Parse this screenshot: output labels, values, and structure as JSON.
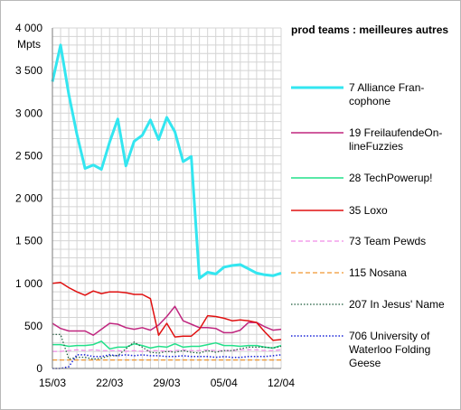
{
  "chart_data": {
    "type": "line",
    "title": "prod teams : meilleures autres",
    "ylabel": "Mpts",
    "ylim": [
      0,
      4000
    ],
    "ystep": 100,
    "y_ticks": [
      {
        "value": 0,
        "label": "0"
      },
      {
        "value": 500,
        "label": "500"
      },
      {
        "value": 1000,
        "label": "1 000"
      },
      {
        "value": 1500,
        "label": "1 500"
      },
      {
        "value": 2000,
        "label": "2 000"
      },
      {
        "value": 2500,
        "label": "2 500"
      },
      {
        "value": 3000,
        "label": "3 000"
      },
      {
        "value": 3500,
        "label": "3 500"
      },
      {
        "value": 4000,
        "label": "4 000"
      }
    ],
    "x": [
      "15/03",
      "16/03",
      "17/03",
      "18/03",
      "19/03",
      "20/03",
      "21/03",
      "22/03",
      "23/03",
      "24/03",
      "25/03",
      "26/03",
      "27/03",
      "28/03",
      "29/03",
      "30/03",
      "31/03",
      "01/04",
      "02/04",
      "03/04",
      "04/04",
      "05/04",
      "06/04",
      "07/04",
      "08/04",
      "09/04",
      "10/04",
      "11/04",
      "12/04"
    ],
    "x_ticks": [
      "15/03",
      "22/03",
      "29/03",
      "05/04",
      "12/04"
    ],
    "grid": true,
    "legend": "right",
    "series": [
      {
        "name": "7 Alliance Francophone",
        "label_lines": [
          "7 Alliance Fran-",
          "cophone"
        ],
        "color": "#33e6f0",
        "width": 3,
        "dash": "",
        "values": [
          3370,
          3800,
          3220,
          2750,
          2350,
          2390,
          2340,
          2660,
          2930,
          2380,
          2670,
          2740,
          2920,
          2690,
          2950,
          2780,
          2430,
          2490,
          1060,
          1130,
          1110,
          1190,
          1210,
          1220,
          1170,
          1120,
          1100,
          1090,
          1120
        ]
      },
      {
        "name": "19 FreilaufendeOnlineFuzzies",
        "label_lines": [
          "19 FreilaufendeOn-",
          "lineFuzzies"
        ],
        "color": "#c0267f",
        "width": 1.5,
        "dash": "",
        "values": [
          530,
          470,
          440,
          440,
          440,
          390,
          460,
          530,
          520,
          480,
          460,
          480,
          450,
          510,
          610,
          730,
          560,
          520,
          480,
          480,
          470,
          420,
          420,
          450,
          540,
          540,
          490,
          450,
          460
        ]
      },
      {
        "name": "28 TechPowerup!",
        "label_lines": [
          "28 TechPowerup!"
        ],
        "color": "#22e08a",
        "width": 1.5,
        "dash": "",
        "values": [
          280,
          280,
          260,
          270,
          270,
          280,
          320,
          230,
          250,
          250,
          290,
          270,
          240,
          260,
          250,
          290,
          250,
          260,
          260,
          280,
          300,
          270,
          270,
          260,
          270,
          270,
          250,
          240,
          270
        ]
      },
      {
        "name": "35 Loxo",
        "label_lines": [
          "35 Loxo"
        ],
        "color": "#e01010",
        "width": 1.5,
        "dash": "",
        "values": [
          1000,
          1010,
          950,
          900,
          860,
          910,
          880,
          900,
          900,
          890,
          870,
          870,
          820,
          390,
          530,
          370,
          380,
          380,
          460,
          620,
          610,
          590,
          560,
          570,
          560,
          540,
          430,
          330,
          340
        ]
      },
      {
        "name": "73 Team Pewds",
        "label_lines": [
          "73 Team Pewds"
        ],
        "color": "#f08ce6",
        "width": 1.2,
        "dash": "5,3",
        "values": [
          200,
          200,
          210,
          220,
          210,
          220,
          210,
          210,
          210,
          200,
          210,
          200,
          210,
          210,
          200,
          210,
          220,
          210,
          210,
          220,
          210,
          210,
          210,
          220,
          220,
          220,
          210,
          210,
          220
        ]
      },
      {
        "name": "115 Nosana",
        "label_lines": [
          "115 Nosana"
        ],
        "color": "#f09630",
        "width": 1.2,
        "dash": "5,3",
        "values": [
          100,
          100,
          100,
          100,
          100,
          100,
          100,
          100,
          100,
          100,
          100,
          100,
          100,
          100,
          100,
          100,
          100,
          100,
          100,
          100,
          100,
          100,
          100,
          100,
          100,
          100,
          100,
          100,
          100
        ]
      },
      {
        "name": "207 In Jesus' Name",
        "label_lines": [
          "207 In Jesus' Name"
        ],
        "color": "#1a5a3a",
        "width": 1.2,
        "dash": "1.5,2",
        "values": [
          400,
          400,
          110,
          130,
          130,
          110,
          120,
          150,
          150,
          230,
          310,
          250,
          190,
          180,
          200,
          190,
          210,
          190,
          180,
          210,
          190,
          210,
          210,
          230,
          250,
          250,
          250,
          240,
          260
        ]
      },
      {
        "name": "706 University of Waterloo Folding Geese",
        "label_lines": [
          "706 University of",
          "Waterloo Folding",
          "Geese"
        ],
        "color": "#1a24d8",
        "width": 1.5,
        "dash": "1.5,2",
        "values": [
          0,
          0,
          20,
          160,
          160,
          140,
          140,
          160,
          150,
          160,
          150,
          160,
          150,
          150,
          140,
          140,
          150,
          140,
          140,
          140,
          130,
          140,
          130,
          130,
          140,
          140,
          140,
          150,
          160
        ]
      }
    ]
  }
}
